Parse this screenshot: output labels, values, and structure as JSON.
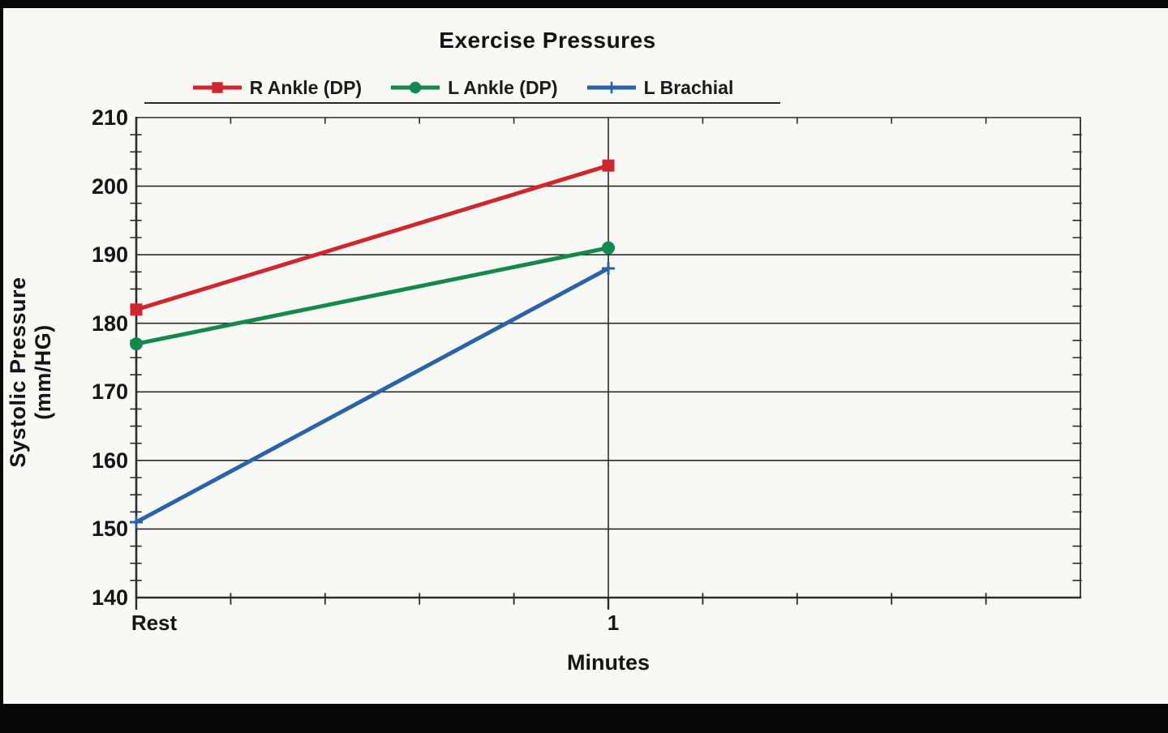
{
  "chart_data": {
    "type": "line",
    "title": "Exercise Pressures",
    "xlabel": "Minutes",
    "ylabel": "Systolic Pressure (mm/HG)",
    "x_values": [
      0,
      1
    ],
    "x_tick_labels": [
      "Rest",
      "1"
    ],
    "xlim": [
      0,
      2
    ],
    "ylim": [
      140,
      210
    ],
    "y_ticks": [
      140,
      150,
      160,
      170,
      180,
      190,
      200,
      210
    ],
    "y_minor_step": 2.5,
    "x_minor_step": 0.2,
    "grid": "horizontal lines at y majors, vertical line at x=1",
    "legend_position": "top",
    "series": [
      {
        "name": "R Ankle (DP)",
        "color": "#cf2630",
        "marker": "square",
        "values": [
          182,
          203
        ]
      },
      {
        "name": "L Ankle (DP)",
        "color": "#14894d",
        "marker": "circle",
        "values": [
          177,
          191
        ]
      },
      {
        "name": "L Brachial",
        "color": "#2a63a8",
        "marker": "plus",
        "values": [
          151,
          188
        ]
      }
    ]
  }
}
